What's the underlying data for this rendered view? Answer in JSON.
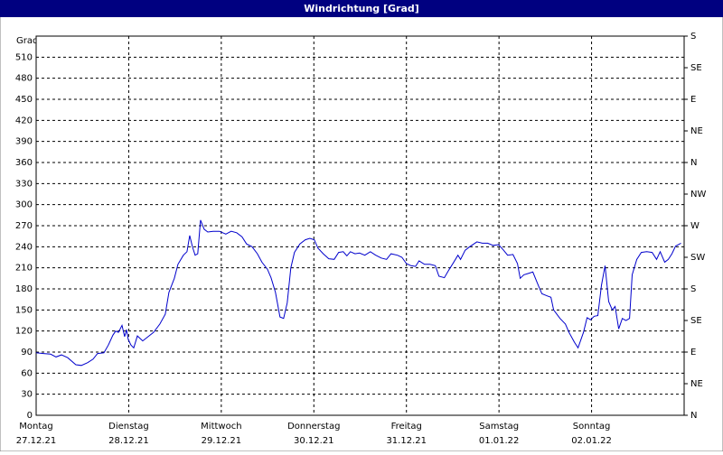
{
  "window_title": "Windrichtung [Grad]",
  "chart_data": {
    "type": "line",
    "ylabel": "Grad",
    "xlim": [
      0,
      7
    ],
    "xticks": [
      {
        "value": 0,
        "label": "Montag"
      },
      {
        "value": 1,
        "label": "Dienstag"
      },
      {
        "value": 2,
        "label": "Mittwoch"
      },
      {
        "value": 3,
        "label": "Donnerstag"
      },
      {
        "value": 4,
        "label": "Freitag"
      },
      {
        "value": 5,
        "label": "Samstag"
      },
      {
        "value": 6,
        "label": "Sonntag"
      }
    ],
    "xtick_dates": [
      "27.12.21",
      "28.12.21",
      "29.12.21",
      "30.12.21",
      "31.12.21",
      "01.01.22",
      "02.01.22"
    ],
    "ylim": [
      0,
      540
    ],
    "yticks": [
      0,
      30,
      60,
      90,
      120,
      150,
      180,
      210,
      240,
      270,
      300,
      330,
      360,
      390,
      420,
      450,
      480,
      510
    ],
    "y2lim": [
      0,
      12
    ],
    "y2ticks": [
      {
        "value": 0,
        "label": "N"
      },
      {
        "value": 1,
        "label": "NE"
      },
      {
        "value": 2,
        "label": "E"
      },
      {
        "value": 3,
        "label": "SE"
      },
      {
        "value": 4,
        "label": "S"
      },
      {
        "value": 5,
        "label": "SW"
      },
      {
        "value": 6,
        "label": "W"
      },
      {
        "value": 7,
        "label": "NW"
      },
      {
        "value": 8,
        "label": "N"
      },
      {
        "value": 9,
        "label": "NE"
      },
      {
        "value": 10,
        "label": "E"
      },
      {
        "value": 11,
        "label": "SE"
      },
      {
        "value": 12,
        "label": "S"
      }
    ],
    "grid": true,
    "series": [
      {
        "color": "#0000cc",
        "x": [
          0,
          0.078,
          0.156,
          0.215,
          0.273,
          0.341,
          0.429,
          0.488,
          0.556,
          0.615,
          0.663,
          0.732,
          0.78,
          0.829,
          0.859,
          0.888,
          0.927,
          0.956,
          0.976,
          0.995,
          1.024,
          1.054,
          1.093,
          1.151,
          1.21,
          1.268,
          1.337,
          1.395,
          1.434,
          1.493,
          1.532,
          1.59,
          1.629,
          1.659,
          1.688,
          1.717,
          1.746,
          1.776,
          1.815,
          1.854,
          1.912,
          1.98,
          2.049,
          2.107,
          2.166,
          2.224,
          2.273,
          2.332,
          2.39,
          2.439,
          2.498,
          2.537,
          2.585,
          2.634,
          2.673,
          2.712,
          2.751,
          2.79,
          2.849,
          2.907,
          2.956,
          3.005,
          3.044,
          3.102,
          3.161,
          3.22,
          3.268,
          3.317,
          3.356,
          3.395,
          3.444,
          3.493,
          3.551,
          3.61,
          3.668,
          3.727,
          3.785,
          3.834,
          3.902,
          3.951,
          4.0,
          4.049,
          4.098,
          4.137,
          4.195,
          4.254,
          4.312,
          4.351,
          4.41,
          4.449,
          4.507,
          4.556,
          4.585,
          4.634,
          4.683,
          4.761,
          4.82,
          4.878,
          4.937,
          4.995,
          5.044,
          5.093,
          5.151,
          5.2,
          5.229,
          5.268,
          5.317,
          5.366,
          5.424,
          5.463,
          5.522,
          5.561,
          5.59,
          5.659,
          5.717,
          5.756,
          5.815,
          5.854,
          5.912,
          5.951,
          5.99,
          6.029,
          6.068,
          6.107,
          6.146,
          6.185,
          6.224,
          6.254,
          6.293,
          6.332,
          6.371,
          6.41,
          6.439,
          6.488,
          6.537,
          6.595,
          6.654,
          6.702,
          6.741,
          6.79,
          6.829,
          6.868,
          6.907,
          6.966
        ],
        "values": [
          89,
          88,
          87,
          83,
          86,
          82,
          72,
          71,
          75,
          80,
          88,
          89,
          100,
          114,
          120,
          118,
          128,
          112,
          122,
          108,
          100,
          96,
          113,
          106,
          112,
          118,
          130,
          144,
          175,
          195,
          215,
          228,
          233,
          256,
          240,
          228,
          230,
          278,
          265,
          261,
          262,
          262,
          258,
          262,
          260,
          254,
          244,
          240,
          230,
          218,
          208,
          196,
          175,
          140,
          138,
          160,
          210,
          232,
          244,
          250,
          252,
          250,
          238,
          230,
          223,
          222,
          232,
          233,
          227,
          233,
          230,
          231,
          228,
          233,
          228,
          224,
          222,
          230,
          228,
          225,
          216,
          213,
          212,
          220,
          215,
          215,
          213,
          198,
          196,
          205,
          217,
          228,
          222,
          235,
          240,
          247,
          245,
          245,
          242,
          243,
          236,
          228,
          229,
          216,
          195,
          200,
          202,
          204,
          185,
          173,
          170,
          168,
          150,
          138,
          130,
          118,
          104,
          96,
          118,
          139,
          136,
          141,
          142,
          185,
          213,
          162,
          150,
          155,
          123,
          138,
          135,
          138,
          200,
          222,
          232,
          233,
          232,
          222,
          233,
          218,
          222,
          230,
          241,
          245
        ]
      }
    ]
  }
}
